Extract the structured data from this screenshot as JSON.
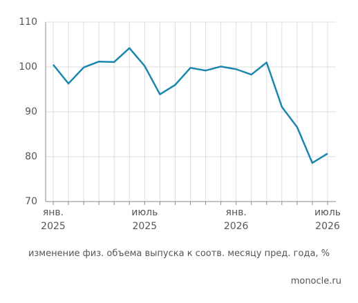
{
  "chart_data": {
    "type": "line",
    "categories": [
      "янв. 2025",
      null,
      null,
      null,
      null,
      null,
      "июль 2025",
      null,
      null,
      null,
      null,
      null,
      "янв. 2026",
      null,
      null,
      null,
      null,
      null,
      "июль 2026"
    ],
    "series": [
      {
        "name": null,
        "color": "#1a86ad",
        "values": [
          100.5,
          96.3,
          99.9,
          101.2,
          101.1,
          104.2,
          100.2,
          93.9,
          96.0,
          99.8,
          99.2,
          100.1,
          99.5,
          98.3,
          101.0,
          91.1,
          86.6,
          78.6,
          80.7
        ]
      }
    ],
    "ylim": [
      70,
      110
    ],
    "yticks": [
      70,
      80,
      90,
      100,
      110
    ],
    "grid": true,
    "caption": "изменение физ. объема выпуска к соотв. месяцу пред. года, %",
    "source": "monocle.ru"
  }
}
